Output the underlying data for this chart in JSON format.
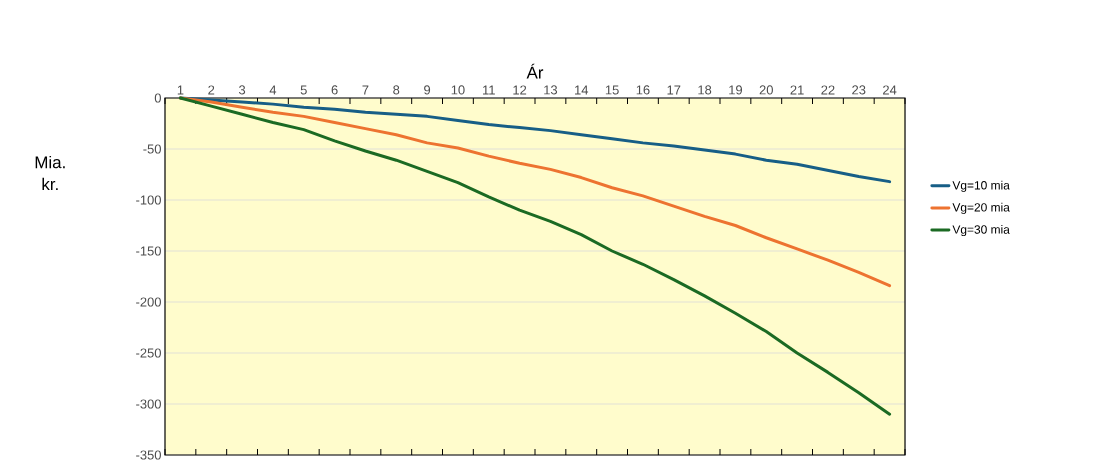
{
  "chart_data": {
    "type": "line",
    "xlabel": "Ár",
    "ylabel": "Mia. kr.",
    "categories": [
      "1",
      "2",
      "3",
      "4",
      "5",
      "6",
      "7",
      "8",
      "9",
      "10",
      "11",
      "12",
      "13",
      "14",
      "15",
      "16",
      "17",
      "18",
      "19",
      "20",
      "21",
      "22",
      "23",
      "24"
    ],
    "series": [
      {
        "name": "Vg=10 mia",
        "color": "#175e86",
        "values": [
          0,
          -2,
          -4,
          -6,
          -9,
          -11,
          -14,
          -16,
          -18,
          -22,
          -26,
          -29,
          -32,
          -36,
          -40,
          -44,
          -47,
          -51,
          -55,
          -61,
          -65,
          -71,
          -77,
          -82
        ]
      },
      {
        "name": "Vg=20 mia",
        "color": "#ed7330",
        "values": [
          0,
          -4,
          -9,
          -14,
          -18,
          -24,
          -30,
          -36,
          -44,
          -49,
          -57,
          -64,
          -70,
          -78,
          -88,
          -96,
          -106,
          -116,
          -125,
          -137,
          -148,
          -159,
          -171,
          -184
        ]
      },
      {
        "name": "Vg=30 mia",
        "color": "#1b6a23",
        "values": [
          0,
          -8,
          -16,
          -24,
          -31,
          -42,
          -52,
          -61,
          -72,
          -83,
          -97,
          -110,
          -121,
          -134,
          -150,
          -163,
          -178,
          -194,
          -211,
          -229,
          -250,
          -269,
          -289,
          -310
        ]
      }
    ],
    "ylim": [
      -350,
      0
    ],
    "yticks": [
      -350,
      -300,
      -250,
      -200,
      -150,
      -100,
      -50,
      0
    ],
    "grid": "y",
    "legend": "right",
    "marker": "none",
    "line_style": "solid"
  }
}
